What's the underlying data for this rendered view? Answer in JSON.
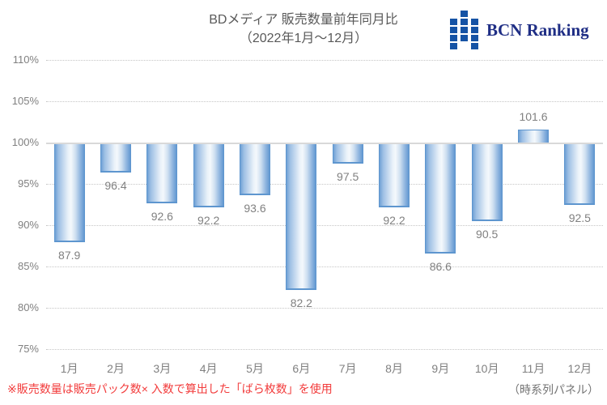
{
  "header": {
    "title_line1": "BDメディア 販売数量前年同月比",
    "title_line2": "（2022年1月～12月）",
    "logo": {
      "text": "BCN Ranking",
      "icon": "bcn-squares-icon",
      "icon_color": "#1553a5",
      "text_color": "#1f2e85"
    }
  },
  "chart_data": {
    "type": "bar",
    "title": "BDメディア 販売数量前年同月比（2022年1月～12月）",
    "categories": [
      "1月",
      "2月",
      "3月",
      "4月",
      "5月",
      "6月",
      "7月",
      "8月",
      "9月",
      "10月",
      "11月",
      "12月"
    ],
    "values": [
      87.9,
      96.4,
      92.6,
      92.2,
      93.6,
      82.2,
      97.5,
      92.2,
      86.6,
      90.5,
      101.6,
      92.5
    ],
    "unit": "%",
    "baseline": 100,
    "ylim": [
      75,
      110
    ],
    "ytick_values": [
      110,
      105,
      100,
      95,
      90,
      85,
      80,
      75
    ],
    "ytick_labels": [
      "110%",
      "105%",
      "100%",
      "95%",
      "90%",
      "85%",
      "80%",
      "75%"
    ],
    "grid": "horizontal-dotted",
    "legend": "none",
    "bar_colors": {
      "border": "#5e96cf",
      "edge": "#79a6d8",
      "center": "#eef4fb"
    },
    "value_label_color": "#808080"
  },
  "footer": {
    "note": "※販売数量は販売パック数× 入数で算出した「ばら枚数」を使用",
    "note_color": "#f23b3b",
    "panel_label": "（時系列パネル）"
  }
}
